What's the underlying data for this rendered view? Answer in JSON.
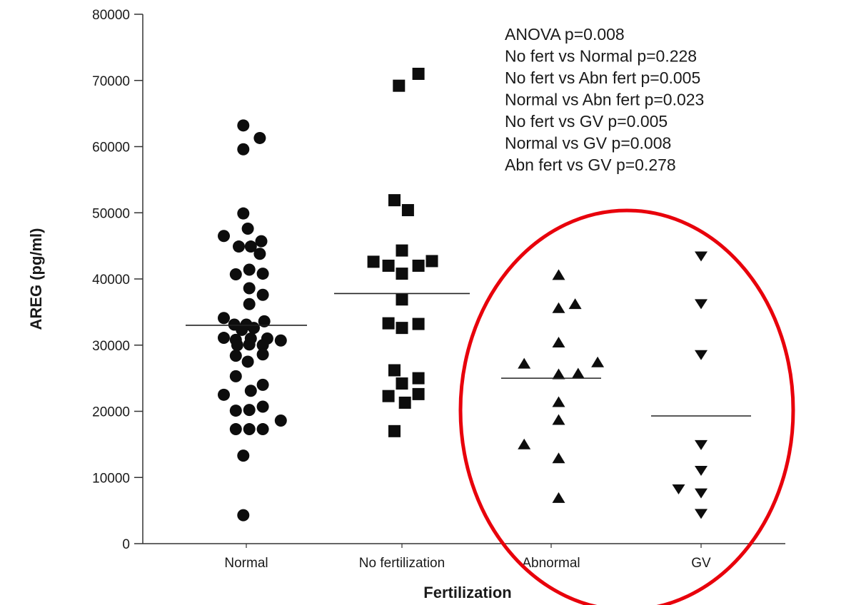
{
  "chart_data": {
    "type": "scatter",
    "title": "",
    "xlabel": "Fertilization",
    "ylabel": "AREG (pg/ml)",
    "ylim": [
      0,
      80000
    ],
    "yticks": [
      0,
      10000,
      20000,
      30000,
      40000,
      50000,
      60000,
      70000,
      80000
    ],
    "categories": [
      "Normal",
      "No fertilization",
      "Abnormal",
      "GV"
    ],
    "grid": false,
    "legend": "none",
    "annotations": [
      "ANOVA p=0.008",
      "No fert vs Normal p=0.228",
      "No fert vs Abn fert p=0.005",
      "Normal vs Abn fert p=0.023",
      "No fert vs GV p=0.005",
      "Normal vs GV p=0.008",
      "Abn fert vs GV p=0.278"
    ],
    "highlight": {
      "shape": "ellipse",
      "color": "#e8000b",
      "around": [
        "Abnormal",
        "GV"
      ]
    },
    "series": [
      {
        "category": "Normal",
        "marker": "circle",
        "mean": 33000,
        "points": [
          [
            -0.02,
            63200
          ],
          [
            0.09,
            61300
          ],
          [
            -0.02,
            59600
          ],
          [
            -0.02,
            49900
          ],
          [
            -0.15,
            46500
          ],
          [
            0.01,
            47600
          ],
          [
            -0.05,
            44900
          ],
          [
            0.03,
            44900
          ],
          [
            0.1,
            45700
          ],
          [
            0.09,
            43800
          ],
          [
            -0.07,
            40700
          ],
          [
            0.02,
            41400
          ],
          [
            0.11,
            40800
          ],
          [
            0.02,
            38600
          ],
          [
            0.11,
            37600
          ],
          [
            0.02,
            36200
          ],
          [
            -0.15,
            34100
          ],
          [
            -0.08,
            33100
          ],
          [
            0.0,
            33100
          ],
          [
            0.12,
            33600
          ],
          [
            -0.03,
            32300
          ],
          [
            0.05,
            32600
          ],
          [
            -0.15,
            31100
          ],
          [
            -0.07,
            30800
          ],
          [
            0.03,
            31000
          ],
          [
            0.14,
            31000
          ],
          [
            0.23,
            30700
          ],
          [
            -0.06,
            30000
          ],
          [
            0.02,
            30100
          ],
          [
            0.11,
            30000
          ],
          [
            -0.07,
            28400
          ],
          [
            0.11,
            28600
          ],
          [
            0.01,
            27500
          ],
          [
            -0.07,
            25300
          ],
          [
            0.03,
            23100
          ],
          [
            0.11,
            24000
          ],
          [
            -0.15,
            22500
          ],
          [
            -0.07,
            20100
          ],
          [
            0.02,
            20200
          ],
          [
            0.11,
            20700
          ],
          [
            -0.07,
            17300
          ],
          [
            0.02,
            17300
          ],
          [
            0.11,
            17300
          ],
          [
            0.23,
            18600
          ],
          [
            -0.02,
            13300
          ],
          [
            -0.02,
            4300
          ]
        ]
      },
      {
        "category": "No fertilization",
        "marker": "square",
        "mean": 37800,
        "points": [
          [
            0.11,
            71000
          ],
          [
            -0.02,
            69200
          ],
          [
            -0.05,
            51900
          ],
          [
            0.04,
            50400
          ],
          [
            0.0,
            44300
          ],
          [
            -0.19,
            42600
          ],
          [
            -0.09,
            42000
          ],
          [
            0.0,
            40800
          ],
          [
            0.11,
            42000
          ],
          [
            0.2,
            42700
          ],
          [
            0.0,
            36900
          ],
          [
            -0.09,
            33300
          ],
          [
            0.0,
            32600
          ],
          [
            0.11,
            33200
          ],
          [
            -0.05,
            26200
          ],
          [
            0.0,
            24200
          ],
          [
            0.11,
            25000
          ],
          [
            -0.09,
            22300
          ],
          [
            0.02,
            21300
          ],
          [
            0.11,
            22600
          ],
          [
            -0.05,
            17000
          ]
        ]
      },
      {
        "category": "Abnormal",
        "marker": "triangle-up",
        "mean": 25000,
        "points": [
          [
            0.05,
            40500
          ],
          [
            0.05,
            35500
          ],
          [
            0.16,
            36100
          ],
          [
            0.05,
            30300
          ],
          [
            -0.18,
            27100
          ],
          [
            0.05,
            25500
          ],
          [
            0.18,
            25600
          ],
          [
            0.31,
            27300
          ],
          [
            0.05,
            21300
          ],
          [
            0.05,
            18600
          ],
          [
            -0.18,
            14900
          ],
          [
            0.05,
            12800
          ],
          [
            0.05,
            6800
          ]
        ]
      },
      {
        "category": "GV",
        "marker": "triangle-down",
        "mean": 19300,
        "points": [
          [
            0.0,
            43500
          ],
          [
            0.0,
            36300
          ],
          [
            0.0,
            28600
          ],
          [
            0.0,
            15000
          ],
          [
            0.0,
            11100
          ],
          [
            -0.15,
            8300
          ],
          [
            0.0,
            7700
          ],
          [
            0.0,
            4600
          ]
        ]
      }
    ]
  }
}
